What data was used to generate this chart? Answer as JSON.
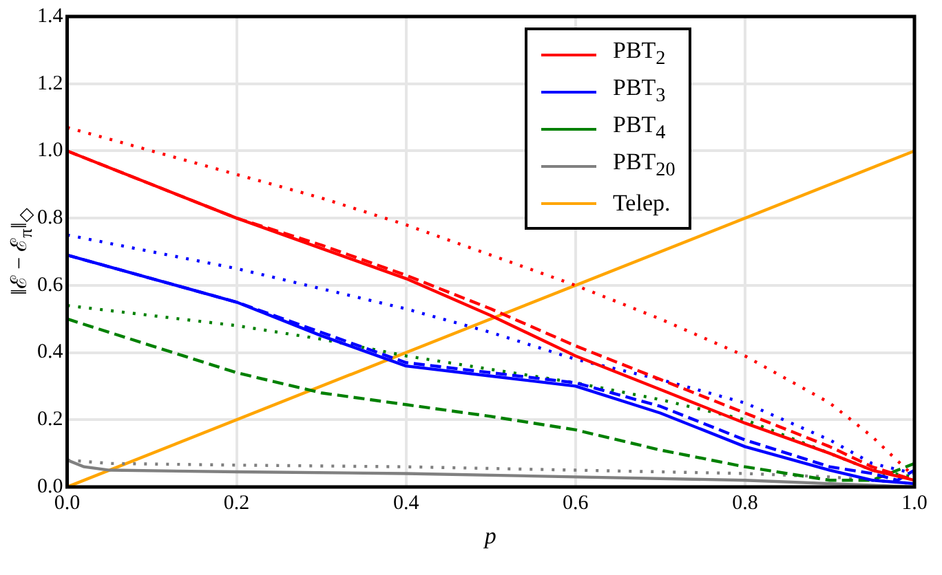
{
  "chart_data": {
    "type": "line",
    "xlabel": "p",
    "ylabel": "‖ℰ − ℰ$_{π}$‖$_{◇}$",
    "xlim": [
      0,
      1
    ],
    "ylim": [
      0,
      1.4
    ],
    "xticks": [
      {
        "value": 0,
        "label": "0.0"
      },
      {
        "value": 0.2,
        "label": "0.2"
      },
      {
        "value": 0.4,
        "label": "0.4"
      },
      {
        "value": 0.6,
        "label": "0.6"
      },
      {
        "value": 0.8,
        "label": "0.8"
      },
      {
        "value": 1,
        "label": "1.0"
      }
    ],
    "yticks": [
      {
        "value": 0,
        "label": "0.0"
      },
      {
        "value": 0.2,
        "label": "0.2"
      },
      {
        "value": 0.4,
        "label": "0.4"
      },
      {
        "value": 0.6,
        "label": "0.6"
      },
      {
        "value": 0.8,
        "label": "0.8"
      },
      {
        "value": 1,
        "label": "1.0"
      },
      {
        "value": 1.2,
        "label": "1.2"
      },
      {
        "value": 1.4,
        "label": "1.4"
      }
    ],
    "grid": true,
    "legend": "top right",
    "marker": "none",
    "series": [
      {
        "name": "PBT$_{2}$",
        "color": "#ff0000",
        "line_style": "solid",
        "x": [
          0,
          0.1,
          0.2,
          0.3,
          0.4,
          0.5,
          0.6,
          0.7,
          0.8,
          0.9,
          0.95,
          1
        ],
        "values": [
          1.0,
          0.9,
          0.8,
          0.71,
          0.62,
          0.51,
          0.39,
          0.29,
          0.19,
          0.1,
          0.05,
          0.02
        ]
      },
      {
        "color": "#ff0000",
        "line_style": "dashed",
        "x": [
          0,
          0.1,
          0.2,
          0.3,
          0.4,
          0.5,
          0.6,
          0.7,
          0.8,
          0.9,
          0.95,
          1
        ],
        "values": [
          1.0,
          0.9,
          0.8,
          0.72,
          0.63,
          0.53,
          0.42,
          0.32,
          0.22,
          0.12,
          0.06,
          0.02
        ]
      },
      {
        "color": "#ff0000",
        "line_style": "dotted",
        "x": [
          0,
          0.1,
          0.2,
          0.3,
          0.4,
          0.5,
          0.6,
          0.7,
          0.8,
          0.9,
          0.95,
          1
        ],
        "values": [
          1.07,
          1.0,
          0.93,
          0.86,
          0.78,
          0.69,
          0.6,
          0.5,
          0.39,
          0.25,
          0.15,
          0.03
        ]
      },
      {
        "name": "PBT$_{3}$",
        "color": "#0000ff",
        "line_style": "solid",
        "x": [
          0,
          0.1,
          0.2,
          0.3,
          0.4,
          0.5,
          0.6,
          0.7,
          0.8,
          0.9,
          0.95,
          1
        ],
        "values": [
          0.69,
          0.62,
          0.55,
          0.45,
          0.36,
          0.33,
          0.3,
          0.22,
          0.12,
          0.05,
          0.02,
          0.01
        ]
      },
      {
        "color": "#0000ff",
        "line_style": "dashed",
        "x": [
          0,
          0.1,
          0.2,
          0.3,
          0.4,
          0.5,
          0.6,
          0.7,
          0.8,
          0.9,
          0.95,
          0.98,
          1
        ],
        "values": [
          0.69,
          0.62,
          0.55,
          0.46,
          0.37,
          0.34,
          0.31,
          0.24,
          0.14,
          0.06,
          0.04,
          0.02,
          0.05
        ]
      },
      {
        "color": "#0000ff",
        "line_style": "dotted",
        "x": [
          0,
          0.1,
          0.2,
          0.3,
          0.4,
          0.5,
          0.6,
          0.7,
          0.8,
          0.9,
          0.95,
          1
        ],
        "values": [
          0.75,
          0.7,
          0.65,
          0.59,
          0.53,
          0.46,
          0.38,
          0.32,
          0.25,
          0.14,
          0.07,
          0.04
        ]
      },
      {
        "name": "PBT$_{4}$",
        "color": "#008000",
        "line_style": "dashed",
        "x": [
          0,
          0.1,
          0.2,
          0.3,
          0.4,
          0.5,
          0.6,
          0.7,
          0.8,
          0.9,
          0.95,
          1
        ],
        "values": [
          0.5,
          0.42,
          0.34,
          0.28,
          0.245,
          0.21,
          0.17,
          0.11,
          0.06,
          0.02,
          0.02,
          0.07
        ]
      },
      {
        "color": "#008000",
        "line_style": "dotted",
        "x": [
          0,
          0.1,
          0.2,
          0.3,
          0.4,
          0.5,
          0.6,
          0.7,
          0.8,
          0.9,
          0.95,
          1
        ],
        "values": [
          0.54,
          0.51,
          0.48,
          0.44,
          0.39,
          0.35,
          0.31,
          0.26,
          0.2,
          0.1,
          0.05,
          0.03
        ]
      },
      {
        "name": "PBT$_{20}$",
        "color": "#808080",
        "line_style": "solid",
        "x": [
          0,
          0.02,
          0.05,
          0.2,
          0.4,
          0.6,
          0.8,
          0.9,
          1
        ],
        "values": [
          0.08,
          0.06,
          0.05,
          0.045,
          0.04,
          0.03,
          0.02,
          0.01,
          0.0
        ]
      },
      {
        "color": "#808080",
        "line_style": "dotted",
        "x": [
          0,
          0.05,
          0.2,
          0.4,
          0.6,
          0.8,
          0.9,
          1
        ],
        "values": [
          0.08,
          0.07,
          0.065,
          0.06,
          0.05,
          0.04,
          0.03,
          0.01
        ]
      },
      {
        "name": "Telep.",
        "color": "#ffa500",
        "line_style": "solid",
        "x": [
          0,
          1
        ],
        "values": [
          0,
          1
        ]
      }
    ]
  }
}
